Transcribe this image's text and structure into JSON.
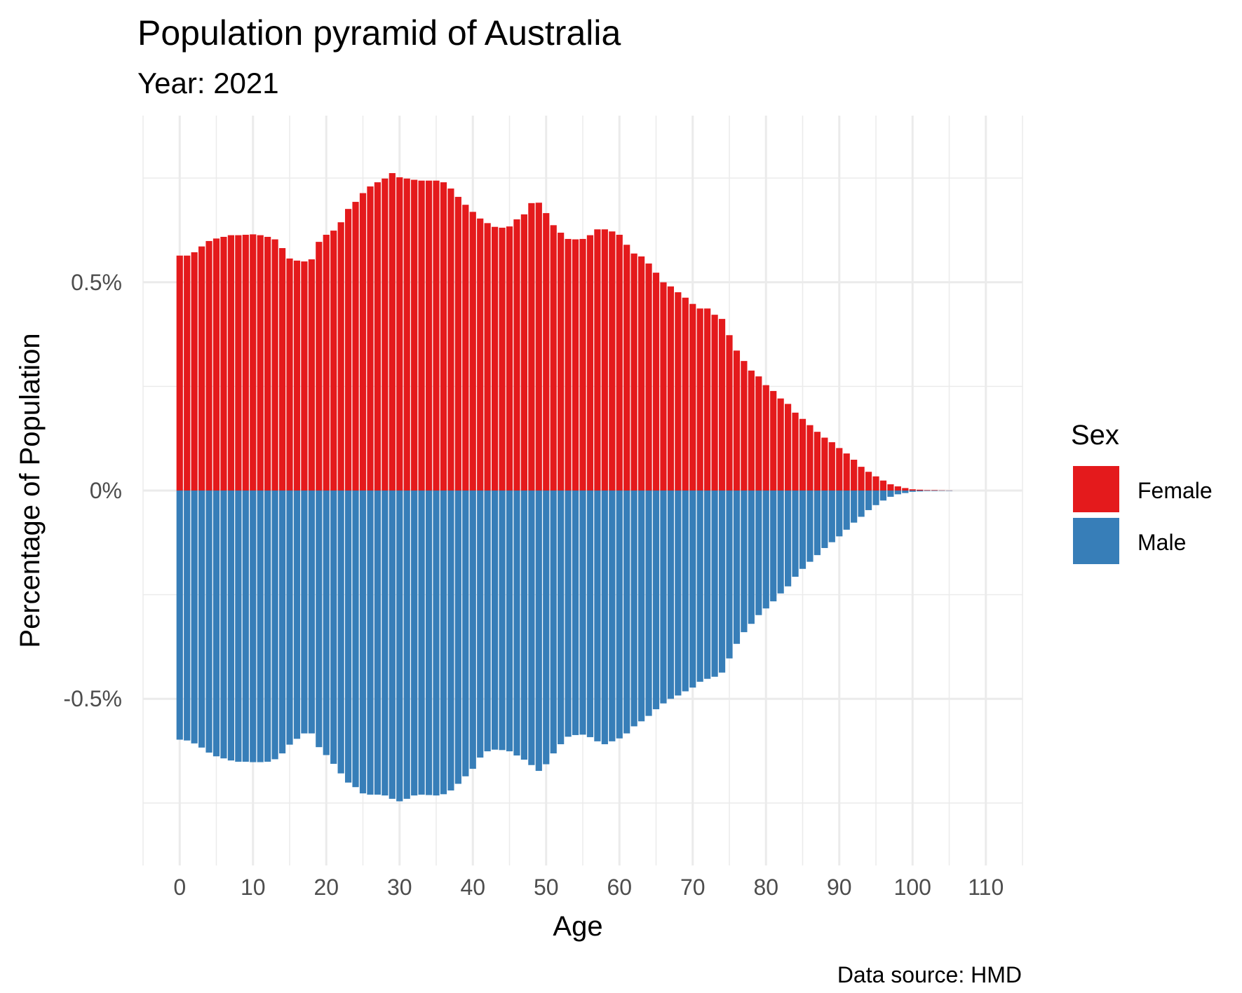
{
  "chart_data": {
    "type": "bar",
    "title": "Population pyramid of Australia",
    "subtitle": "Year: 2021",
    "xlabel": "Age",
    "ylabel": "Percentage of Population",
    "caption": "Data source: HMD",
    "xlim": [
      -5,
      115
    ],
    "ylim": [
      -0.9,
      0.9
    ],
    "x_ticks": [
      0,
      10,
      20,
      30,
      40,
      50,
      60,
      70,
      80,
      90,
      100,
      110
    ],
    "x_tick_labels": [
      "0",
      "10",
      "20",
      "30",
      "40",
      "50",
      "60",
      "70",
      "80",
      "90",
      "100",
      "110"
    ],
    "y_ticks": [
      -0.5,
      0,
      0.5
    ],
    "y_tick_labels": [
      "-0.5%",
      "0%",
      "0.5%"
    ],
    "legend": {
      "title": "Sex",
      "position": "right",
      "entries": [
        {
          "label": "Female",
          "color": "#e41a1c"
        },
        {
          "label": "Male",
          "color": "#377eb8"
        }
      ]
    },
    "ages": [
      0,
      1,
      2,
      3,
      4,
      5,
      6,
      7,
      8,
      9,
      10,
      11,
      12,
      13,
      14,
      15,
      16,
      17,
      18,
      19,
      20,
      21,
      22,
      23,
      24,
      25,
      26,
      27,
      28,
      29,
      30,
      31,
      32,
      33,
      34,
      35,
      36,
      37,
      38,
      39,
      40,
      41,
      42,
      43,
      44,
      45,
      46,
      47,
      48,
      49,
      50,
      51,
      52,
      53,
      54,
      55,
      56,
      57,
      58,
      59,
      60,
      61,
      62,
      63,
      64,
      65,
      66,
      67,
      68,
      69,
      70,
      71,
      72,
      73,
      74,
      75,
      76,
      77,
      78,
      79,
      80,
      81,
      82,
      83,
      84,
      85,
      86,
      87,
      88,
      89,
      90,
      91,
      92,
      93,
      94,
      95,
      96,
      97,
      98,
      99,
      100,
      101,
      102,
      103,
      104,
      105
    ],
    "series": [
      {
        "name": "Female",
        "color": "#e41a1c",
        "values": [
          0.564,
          0.564,
          0.572,
          0.586,
          0.599,
          0.605,
          0.609,
          0.613,
          0.613,
          0.614,
          0.615,
          0.613,
          0.609,
          0.603,
          0.582,
          0.557,
          0.552,
          0.55,
          0.555,
          0.597,
          0.614,
          0.624,
          0.644,
          0.676,
          0.693,
          0.714,
          0.73,
          0.74,
          0.749,
          0.762,
          0.752,
          0.749,
          0.746,
          0.744,
          0.744,
          0.744,
          0.74,
          0.725,
          0.705,
          0.686,
          0.669,
          0.653,
          0.642,
          0.633,
          0.631,
          0.634,
          0.651,
          0.663,
          0.69,
          0.691,
          0.666,
          0.637,
          0.619,
          0.604,
          0.603,
          0.604,
          0.613,
          0.627,
          0.627,
          0.622,
          0.614,
          0.59,
          0.569,
          0.562,
          0.545,
          0.523,
          0.5,
          0.49,
          0.476,
          0.463,
          0.448,
          0.437,
          0.437,
          0.422,
          0.412,
          0.373,
          0.336,
          0.311,
          0.288,
          0.274,
          0.253,
          0.239,
          0.221,
          0.208,
          0.187,
          0.172,
          0.157,
          0.141,
          0.127,
          0.116,
          0.102,
          0.089,
          0.074,
          0.057,
          0.045,
          0.034,
          0.024,
          0.015,
          0.01,
          0.006,
          0.003,
          0.002,
          0.001,
          0.001,
          0.0005,
          0.0002
        ]
      },
      {
        "name": "Male",
        "color": "#377eb8",
        "values": [
          -0.598,
          -0.6,
          -0.607,
          -0.617,
          -0.629,
          -0.638,
          -0.643,
          -0.648,
          -0.651,
          -0.651,
          -0.652,
          -0.652,
          -0.651,
          -0.645,
          -0.631,
          -0.61,
          -0.596,
          -0.583,
          -0.583,
          -0.616,
          -0.635,
          -0.656,
          -0.679,
          -0.701,
          -0.712,
          -0.727,
          -0.73,
          -0.73,
          -0.732,
          -0.74,
          -0.746,
          -0.74,
          -0.732,
          -0.73,
          -0.731,
          -0.732,
          -0.729,
          -0.72,
          -0.704,
          -0.686,
          -0.668,
          -0.641,
          -0.626,
          -0.622,
          -0.623,
          -0.626,
          -0.636,
          -0.646,
          -0.659,
          -0.673,
          -0.657,
          -0.631,
          -0.609,
          -0.591,
          -0.587,
          -0.586,
          -0.592,
          -0.602,
          -0.609,
          -0.602,
          -0.595,
          -0.583,
          -0.566,
          -0.554,
          -0.541,
          -0.525,
          -0.511,
          -0.5,
          -0.492,
          -0.482,
          -0.473,
          -0.459,
          -0.452,
          -0.447,
          -0.437,
          -0.403,
          -0.368,
          -0.34,
          -0.32,
          -0.299,
          -0.283,
          -0.266,
          -0.247,
          -0.23,
          -0.207,
          -0.188,
          -0.171,
          -0.155,
          -0.138,
          -0.124,
          -0.11,
          -0.094,
          -0.077,
          -0.063,
          -0.047,
          -0.035,
          -0.024,
          -0.015,
          -0.009,
          -0.006,
          -0.003,
          -0.002,
          -0.001,
          -0.001,
          -0.0005,
          -0.0002
        ]
      }
    ]
  }
}
